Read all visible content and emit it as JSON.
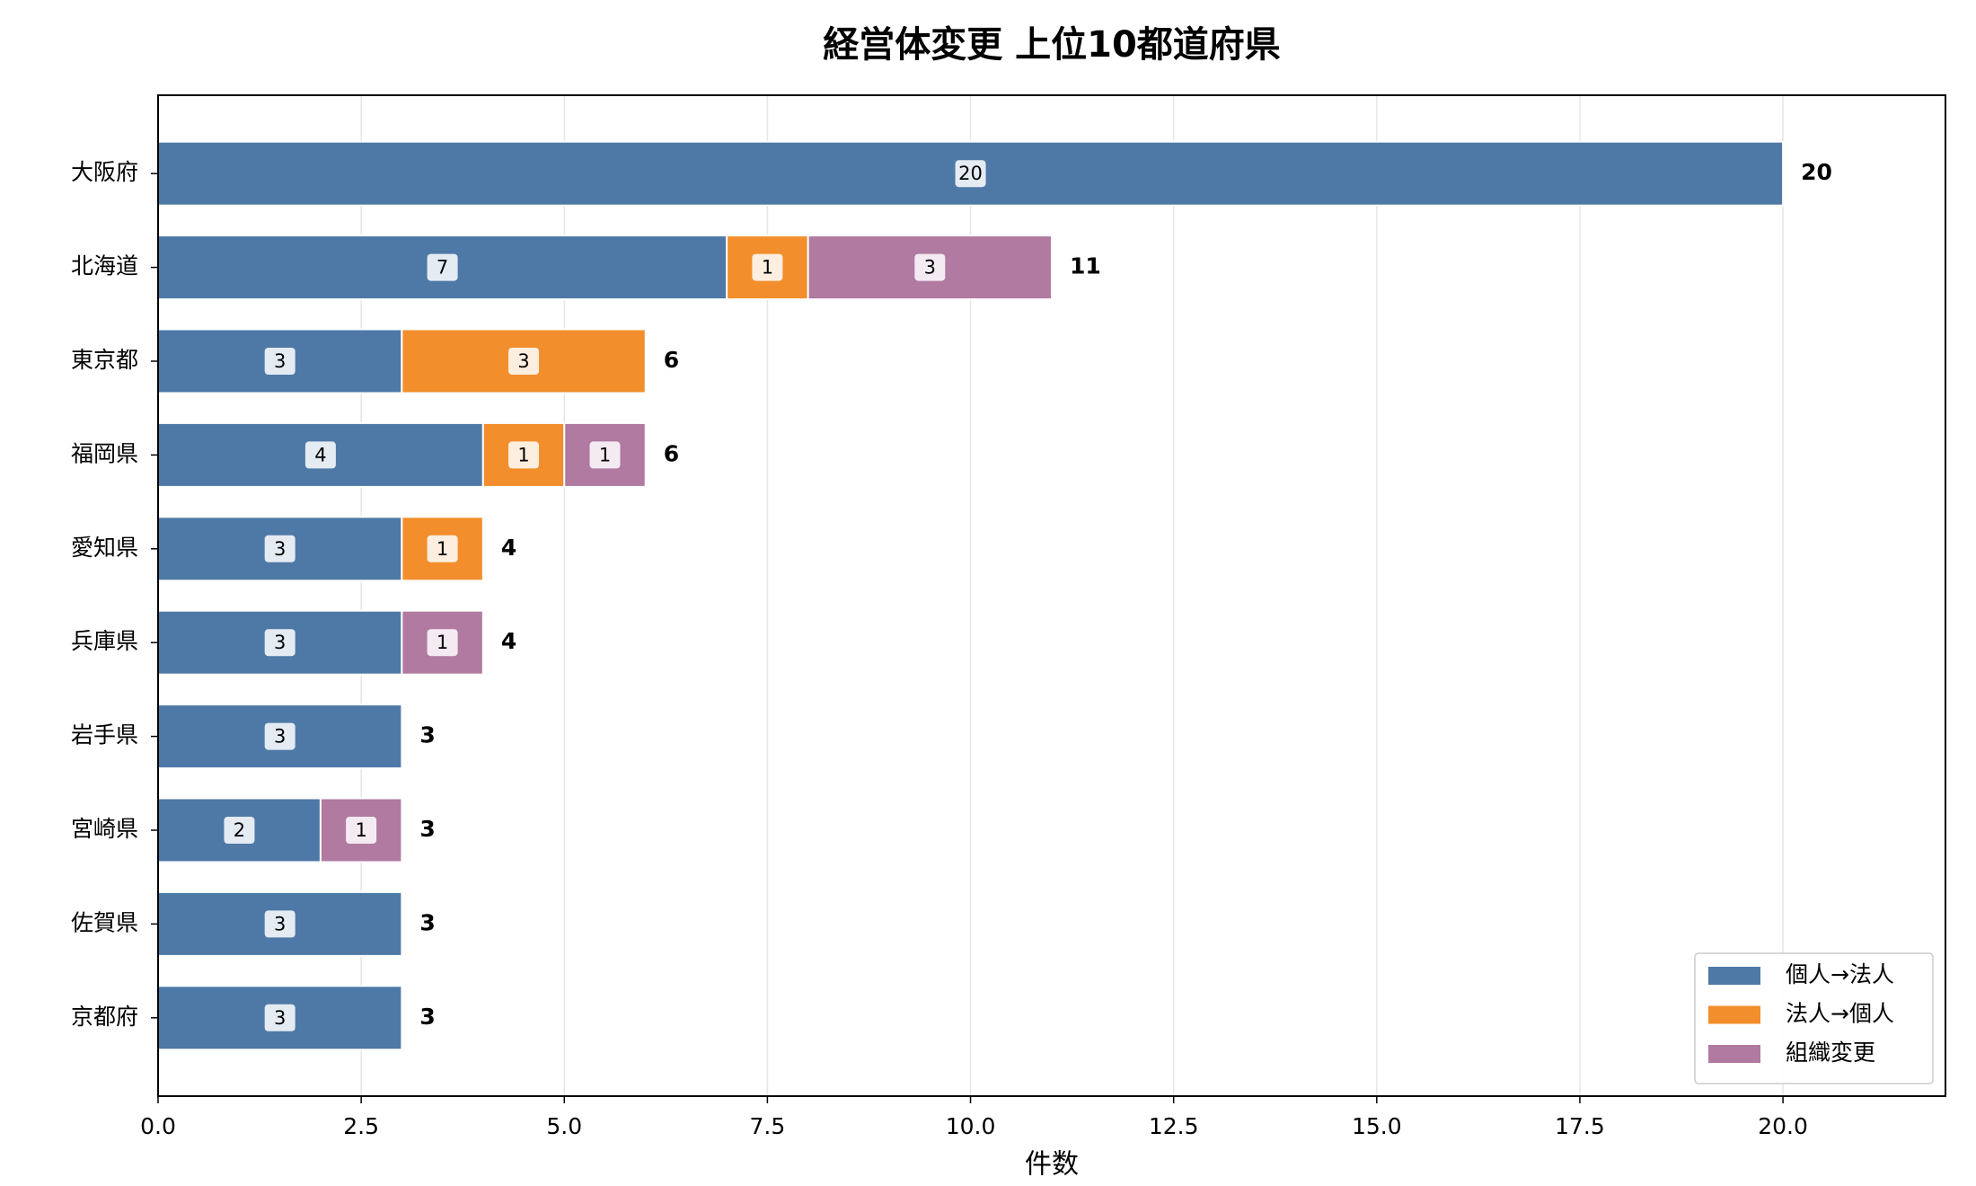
{
  "chart_data": {
    "type": "stacked-barh",
    "title": "経営体変更 上位10都道府県",
    "xlabel": "件数",
    "categories": [
      "大阪府",
      "北海道",
      "東京都",
      "福岡県",
      "愛知県",
      "兵庫県",
      "岩手県",
      "宮崎県",
      "佐賀県",
      "京都府"
    ],
    "series": [
      {
        "name": "個人→法人",
        "color": "#4e79a7",
        "values": [
          20,
          7,
          3,
          4,
          3,
          3,
          3,
          2,
          3,
          3
        ]
      },
      {
        "name": "法人→個人",
        "color": "#f28e2b",
        "values": [
          0,
          1,
          3,
          1,
          1,
          0,
          0,
          0,
          0,
          0
        ]
      },
      {
        "name": "組織変更",
        "color": "#b07aa1",
        "values": [
          0,
          3,
          0,
          1,
          0,
          1,
          0,
          1,
          0,
          0
        ]
      }
    ],
    "totals": [
      20,
      11,
      6,
      6,
      4,
      4,
      3,
      3,
      3,
      3
    ],
    "xlim": [
      0,
      22
    ],
    "xticks": [
      {
        "value": 0,
        "label": "0.0"
      },
      {
        "value": 2.5,
        "label": "2.5"
      },
      {
        "value": 5,
        "label": "5.0"
      },
      {
        "value": 7.5,
        "label": "7.5"
      },
      {
        "value": 10,
        "label": "10.0"
      },
      {
        "value": 12.5,
        "label": "12.5"
      },
      {
        "value": 15,
        "label": "15.0"
      },
      {
        "value": 17.5,
        "label": "17.5"
      },
      {
        "value": 20,
        "label": "20.0"
      }
    ],
    "grid": true,
    "legend": "lower right"
  }
}
